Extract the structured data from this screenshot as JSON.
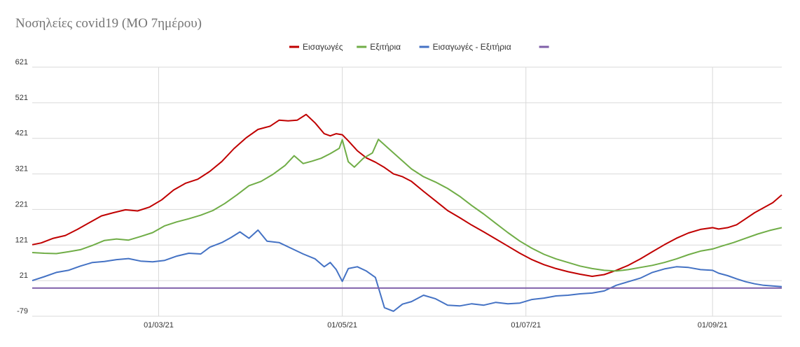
{
  "chart_data": {
    "type": "line",
    "title": "Νοσηλείες covid19 (ΜΟ 7ημέρου)",
    "xlabel": "",
    "ylabel": "",
    "grid": true,
    "legend_position": "top-center",
    "x_start": "2021-01-18",
    "x_end": "2021-09-24",
    "x_ticks": [
      {
        "date": "2021-03-01",
        "label": "01/03/21"
      },
      {
        "date": "2021-05-01",
        "label": "01/05/21"
      },
      {
        "date": "2021-07-01",
        "label": "01/07/21"
      },
      {
        "date": "2021-09-01",
        "label": "01/09/21"
      }
    ],
    "y_ticks": [
      -79,
      21,
      121,
      221,
      321,
      421,
      521,
      621
    ],
    "ylim": [
      -79,
      621
    ],
    "series": [
      {
        "name": "Εισαγωγές",
        "color": "#c00000",
        "points": [
          [
            "2021-01-18",
            122
          ],
          [
            "2021-01-21",
            127
          ],
          [
            "2021-01-25",
            140
          ],
          [
            "2021-01-29",
            148
          ],
          [
            "2021-02-02",
            165
          ],
          [
            "2021-02-06",
            184
          ],
          [
            "2021-02-10",
            203
          ],
          [
            "2021-02-14",
            212
          ],
          [
            "2021-02-18",
            220
          ],
          [
            "2021-02-22",
            217
          ],
          [
            "2021-02-26",
            228
          ],
          [
            "2021-03-02",
            248
          ],
          [
            "2021-03-06",
            276
          ],
          [
            "2021-03-10",
            295
          ],
          [
            "2021-03-14",
            306
          ],
          [
            "2021-03-18",
            328
          ],
          [
            "2021-03-22",
            356
          ],
          [
            "2021-03-26",
            392
          ],
          [
            "2021-03-30",
            422
          ],
          [
            "2021-04-03",
            446
          ],
          [
            "2021-04-07",
            455
          ],
          [
            "2021-04-10",
            472
          ],
          [
            "2021-04-13",
            470
          ],
          [
            "2021-04-16",
            472
          ],
          [
            "2021-04-19",
            488
          ],
          [
            "2021-04-22",
            464
          ],
          [
            "2021-04-25",
            434
          ],
          [
            "2021-04-27",
            428
          ],
          [
            "2021-04-29",
            434
          ],
          [
            "2021-05-01",
            431
          ],
          [
            "2021-05-03",
            414
          ],
          [
            "2021-05-06",
            386
          ],
          [
            "2021-05-09",
            366
          ],
          [
            "2021-05-12",
            354
          ],
          [
            "2021-05-15",
            339
          ],
          [
            "2021-05-18",
            321
          ],
          [
            "2021-05-21",
            313
          ],
          [
            "2021-05-24",
            300
          ],
          [
            "2021-05-28",
            272
          ],
          [
            "2021-06-01",
            245
          ],
          [
            "2021-06-05",
            218
          ],
          [
            "2021-06-09",
            198
          ],
          [
            "2021-06-13",
            177
          ],
          [
            "2021-06-17",
            158
          ],
          [
            "2021-06-21",
            138
          ],
          [
            "2021-06-25",
            118
          ],
          [
            "2021-06-29",
            98
          ],
          [
            "2021-07-03",
            80
          ],
          [
            "2021-07-07",
            66
          ],
          [
            "2021-07-11",
            55
          ],
          [
            "2021-07-15",
            46
          ],
          [
            "2021-07-19",
            39
          ],
          [
            "2021-07-23",
            33
          ],
          [
            "2021-07-27",
            38
          ],
          [
            "2021-07-31",
            50
          ],
          [
            "2021-08-04",
            64
          ],
          [
            "2021-08-08",
            82
          ],
          [
            "2021-08-12",
            102
          ],
          [
            "2021-08-16",
            122
          ],
          [
            "2021-08-20",
            140
          ],
          [
            "2021-08-24",
            155
          ],
          [
            "2021-08-28",
            165
          ],
          [
            "2021-09-01",
            170
          ],
          [
            "2021-09-03",
            166
          ],
          [
            "2021-09-06",
            170
          ],
          [
            "2021-09-09",
            178
          ],
          [
            "2021-09-12",
            195
          ],
          [
            "2021-09-15",
            212
          ],
          [
            "2021-09-18",
            226
          ],
          [
            "2021-09-21",
            240
          ],
          [
            "2021-09-24",
            262
          ]
        ]
      },
      {
        "name": "Εξιτήρια",
        "color": "#70ad47",
        "points": [
          [
            "2021-01-18",
            100
          ],
          [
            "2021-01-22",
            98
          ],
          [
            "2021-01-26",
            97
          ],
          [
            "2021-01-30",
            102
          ],
          [
            "2021-02-03",
            108
          ],
          [
            "2021-02-07",
            120
          ],
          [
            "2021-02-11",
            134
          ],
          [
            "2021-02-15",
            138
          ],
          [
            "2021-02-19",
            135
          ],
          [
            "2021-02-23",
            145
          ],
          [
            "2021-02-27",
            156
          ],
          [
            "2021-03-03",
            175
          ],
          [
            "2021-03-07",
            186
          ],
          [
            "2021-03-11",
            195
          ],
          [
            "2021-03-15",
            205
          ],
          [
            "2021-03-19",
            218
          ],
          [
            "2021-03-23",
            238
          ],
          [
            "2021-03-27",
            262
          ],
          [
            "2021-03-31",
            288
          ],
          [
            "2021-04-04",
            300
          ],
          [
            "2021-04-08",
            320
          ],
          [
            "2021-04-12",
            345
          ],
          [
            "2021-04-15",
            372
          ],
          [
            "2021-04-18",
            350
          ],
          [
            "2021-04-21",
            357
          ],
          [
            "2021-04-24",
            365
          ],
          [
            "2021-04-27",
            378
          ],
          [
            "2021-04-30",
            393
          ],
          [
            "2021-05-01",
            417
          ],
          [
            "2021-05-03",
            355
          ],
          [
            "2021-05-05",
            340
          ],
          [
            "2021-05-08",
            365
          ],
          [
            "2021-05-11",
            380
          ],
          [
            "2021-05-13",
            418
          ],
          [
            "2021-05-16",
            395
          ],
          [
            "2021-05-20",
            365
          ],
          [
            "2021-05-24",
            335
          ],
          [
            "2021-05-28",
            313
          ],
          [
            "2021-06-01",
            298
          ],
          [
            "2021-06-05",
            280
          ],
          [
            "2021-06-09",
            258
          ],
          [
            "2021-06-13",
            232
          ],
          [
            "2021-06-17",
            208
          ],
          [
            "2021-06-21",
            182
          ],
          [
            "2021-06-25",
            156
          ],
          [
            "2021-06-29",
            132
          ],
          [
            "2021-07-03",
            112
          ],
          [
            "2021-07-07",
            95
          ],
          [
            "2021-07-11",
            82
          ],
          [
            "2021-07-15",
            72
          ],
          [
            "2021-07-19",
            62
          ],
          [
            "2021-07-23",
            55
          ],
          [
            "2021-07-27",
            50
          ],
          [
            "2021-07-31",
            48
          ],
          [
            "2021-08-04",
            52
          ],
          [
            "2021-08-08",
            58
          ],
          [
            "2021-08-12",
            64
          ],
          [
            "2021-08-16",
            72
          ],
          [
            "2021-08-20",
            82
          ],
          [
            "2021-08-24",
            94
          ],
          [
            "2021-08-28",
            104
          ],
          [
            "2021-09-01",
            110
          ],
          [
            "2021-09-04",
            118
          ],
          [
            "2021-09-08",
            128
          ],
          [
            "2021-09-12",
            140
          ],
          [
            "2021-09-16",
            152
          ],
          [
            "2021-09-20",
            162
          ],
          [
            "2021-09-24",
            170
          ]
        ]
      },
      {
        "name": "Εισαγωγές - Εξιτήρια",
        "color": "#4472c4",
        "points": [
          [
            "2021-01-18",
            21
          ],
          [
            "2021-01-22",
            32
          ],
          [
            "2021-01-26",
            44
          ],
          [
            "2021-01-30",
            50
          ],
          [
            "2021-02-03",
            62
          ],
          [
            "2021-02-07",
            72
          ],
          [
            "2021-02-11",
            75
          ],
          [
            "2021-02-15",
            80
          ],
          [
            "2021-02-19",
            83
          ],
          [
            "2021-02-23",
            76
          ],
          [
            "2021-02-27",
            74
          ],
          [
            "2021-03-03",
            78
          ],
          [
            "2021-03-07",
            90
          ],
          [
            "2021-03-11",
            98
          ],
          [
            "2021-03-15",
            96
          ],
          [
            "2021-03-18",
            115
          ],
          [
            "2021-03-22",
            128
          ],
          [
            "2021-03-25",
            142
          ],
          [
            "2021-03-28",
            158
          ],
          [
            "2021-03-31",
            140
          ],
          [
            "2021-04-03",
            163
          ],
          [
            "2021-04-06",
            132
          ],
          [
            "2021-04-10",
            128
          ],
          [
            "2021-04-14",
            112
          ],
          [
            "2021-04-18",
            96
          ],
          [
            "2021-04-22",
            82
          ],
          [
            "2021-04-25",
            60
          ],
          [
            "2021-04-27",
            72
          ],
          [
            "2021-04-29",
            52
          ],
          [
            "2021-05-01",
            19
          ],
          [
            "2021-05-03",
            55
          ],
          [
            "2021-05-06",
            60
          ],
          [
            "2021-05-09",
            48
          ],
          [
            "2021-05-12",
            30
          ],
          [
            "2021-05-15",
            -55
          ],
          [
            "2021-05-18",
            -65
          ],
          [
            "2021-05-21",
            -45
          ],
          [
            "2021-05-24",
            -38
          ],
          [
            "2021-05-28",
            -20
          ],
          [
            "2021-06-01",
            -30
          ],
          [
            "2021-06-05",
            -48
          ],
          [
            "2021-06-09",
            -50
          ],
          [
            "2021-06-13",
            -44
          ],
          [
            "2021-06-17",
            -48
          ],
          [
            "2021-06-21",
            -40
          ],
          [
            "2021-06-25",
            -44
          ],
          [
            "2021-06-29",
            -42
          ],
          [
            "2021-07-03",
            -32
          ],
          [
            "2021-07-07",
            -28
          ],
          [
            "2021-07-11",
            -22
          ],
          [
            "2021-07-15",
            -20
          ],
          [
            "2021-07-19",
            -16
          ],
          [
            "2021-07-23",
            -14
          ],
          [
            "2021-07-27",
            -8
          ],
          [
            "2021-07-31",
            8
          ],
          [
            "2021-08-04",
            18
          ],
          [
            "2021-08-08",
            28
          ],
          [
            "2021-08-12",
            44
          ],
          [
            "2021-08-16",
            54
          ],
          [
            "2021-08-20",
            60
          ],
          [
            "2021-08-24",
            58
          ],
          [
            "2021-08-28",
            52
          ],
          [
            "2021-09-01",
            50
          ],
          [
            "2021-09-03",
            42
          ],
          [
            "2021-09-06",
            35
          ],
          [
            "2021-09-09",
            26
          ],
          [
            "2021-09-12",
            18
          ],
          [
            "2021-09-15",
            12
          ],
          [
            "2021-09-18",
            8
          ],
          [
            "2021-09-21",
            6
          ],
          [
            "2021-09-24",
            4
          ]
        ]
      },
      {
        "name": "",
        "color": "#7f5fa8",
        "points": [
          [
            "2021-01-18",
            0
          ],
          [
            "2021-09-24",
            0
          ]
        ]
      }
    ]
  }
}
